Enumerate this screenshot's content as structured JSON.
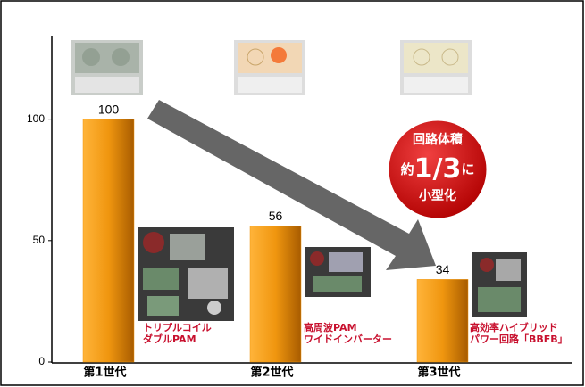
{
  "chart_data": {
    "type": "bar",
    "categories": [
      "第1世代",
      "第2世代",
      "第3世代"
    ],
    "values": [
      100,
      56,
      34
    ],
    "color": "#f0960f",
    "ylim": [
      0,
      134
    ],
    "yticks": [
      0,
      50,
      100
    ],
    "callout": [
      "回路体積",
      [
        "約",
        "1/3",
        "に"
      ],
      "小型化"
    ],
    "circuit_labels": [
      [
        "トリプルコイル",
        "ダブルPAM"
      ],
      [
        "高周波PAM",
        "ワイドインバーター"
      ],
      [
        "高効率ハイブリッド",
        "パワー回路「BBFB」"
      ]
    ]
  }
}
